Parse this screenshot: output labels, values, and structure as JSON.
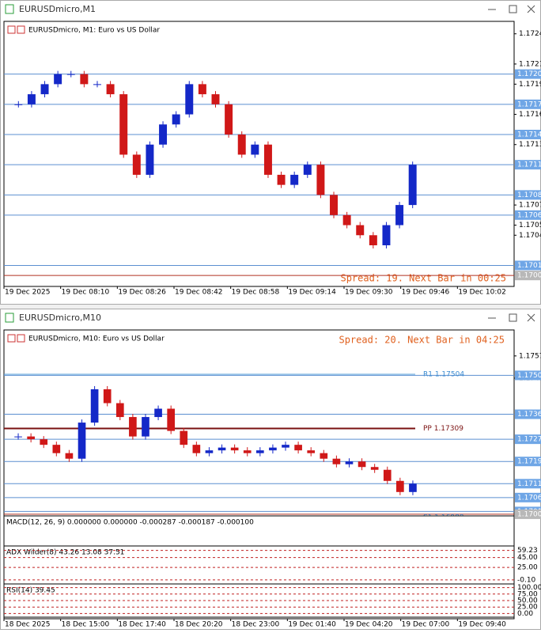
{
  "windows": [
    {
      "title": "EURUSDmicro,M1",
      "symbol_label": "EURUSDmicro, M1:  Euro vs US Dollar",
      "spread": "Spread: 19. Next Bar in 00:25",
      "ylim": [
        1.16997,
        1.1725
      ],
      "ticks": [
        1.1724,
        1.1721,
        1.1719,
        1.1716,
        1.1713,
        1.1707,
        1.1705,
        1.1704
      ],
      "levels": [
        {
          "value": 1.172,
          "label": "1.1720"
        },
        {
          "value": 1.1717,
          "label": "1.1717"
        },
        {
          "value": 1.1714,
          "label": "1.1714"
        },
        {
          "value": 1.1711,
          "label": "1.1711"
        },
        {
          "value": 1.1708,
          "label": "1.1708"
        },
        {
          "value": 1.1706,
          "label": "1.1706"
        },
        {
          "value": 1.1701,
          "label": "1.1701"
        },
        {
          "value": 1.17,
          "label": "1.1700"
        }
      ],
      "pivots": [],
      "closes": [
        1.1717,
        1.1718,
        1.1719,
        1.172,
        1.172,
        1.1719,
        1.1719,
        1.1718,
        1.1712,
        1.171,
        1.1713,
        1.1715,
        1.1716,
        1.1719,
        1.1718,
        1.1717,
        1.1714,
        1.1712,
        1.1713,
        1.171,
        1.1709,
        1.171,
        1.1711,
        1.1708,
        1.1706,
        1.1705,
        1.1704,
        1.1703,
        1.1705,
        1.1707,
        1.1711
      ],
      "time_labels": [
        "19 Dec 2025",
        "19 Dec 08:10",
        "19 Dec 08:26",
        "19 Dec 08:42",
        "19 Dec 08:58",
        "19 Dec 09:14",
        "19 Dec 09:30",
        "19 Dec 09:46",
        "19 Dec 10:02"
      ],
      "indicators": []
    },
    {
      "title": "EURUSDmicro,M10",
      "symbol_label": "EURUSDmicro, M10:  Euro vs US Dollar",
      "spread": "Spread: 20. Next Bar in 04:25",
      "ylim": [
        1.16994,
        1.17655
      ],
      "ticks": [
        {
          "value": 1.1757,
          "label": "1.17570"
        },
        {
          "value": 1.1749,
          "label": "1.17490"
        }
      ],
      "levels": [
        {
          "value": 1.175,
          "label": "1.1750"
        },
        {
          "value": 1.1736,
          "label": "1.1736"
        },
        {
          "value": 1.1727,
          "label": "1.1727"
        },
        {
          "value": 1.1719,
          "label": "1.1719"
        },
        {
          "value": 1.1711,
          "label": "1.1711"
        },
        {
          "value": 1.1706,
          "label": "1.1706"
        },
        {
          "value": 1.1701,
          "label": "1.1701"
        },
        {
          "value": 1.17,
          "label": "1.1700"
        }
      ],
      "pivots": [
        {
          "value": 1.17504,
          "label": "R1 1.17504"
        },
        {
          "value": 1.17309,
          "label": "PP 1.17309"
        },
        {
          "value": 1.16988,
          "label": "S1 1.16988"
        }
      ],
      "closes": [
        1.1728,
        1.1727,
        1.1725,
        1.1722,
        1.172,
        1.1733,
        1.1745,
        1.174,
        1.1735,
        1.1728,
        1.1735,
        1.1738,
        1.173,
        1.1725,
        1.1722,
        1.1723,
        1.1724,
        1.1723,
        1.1722,
        1.1723,
        1.1724,
        1.1725,
        1.1723,
        1.1722,
        1.172,
        1.1718,
        1.1719,
        1.1717,
        1.1716,
        1.1712,
        1.1708,
        1.1711
      ],
      "time_labels": [
        "18 Dec 2025",
        "18 Dec 15:00",
        "18 Dec 17:40",
        "18 Dec 20:20",
        "18 Dec 23:00",
        "19 Dec 01:40",
        "19 Dec 04:20",
        "19 Dec 07:00",
        "19 Dec 09:40"
      ],
      "indicators": [
        {
          "label": "MACD(12, 26, 9) 0.000000 0.000000 -0.000287 -0.000187 -0.000100",
          "ylim": [
            -0.0005,
            0.0005
          ],
          "ticks": []
        },
        {
          "label": "ADX Wilder(8) 43.26 13.08 37.51",
          "ylim": [
            -5,
            65
          ],
          "ticks": [
            {
              "value": 59.23,
              "label": "59.23"
            },
            {
              "value": 45,
              "label": "45.00"
            },
            {
              "value": 25,
              "label": "25.00"
            },
            {
              "value": -0.1,
              "label": "-0.10"
            }
          ]
        },
        {
          "label": "RSI(14) 39.45",
          "ylim": [
            -8,
            108
          ],
          "ticks": [
            {
              "value": 100,
              "label": "100.00"
            },
            {
              "value": 75,
              "label": "75.00"
            },
            {
              "value": 50,
              "label": "50.00"
            },
            {
              "value": 25,
              "label": "25.00"
            },
            {
              "value": 0,
              "label": "0.00"
            }
          ]
        }
      ]
    }
  ]
}
